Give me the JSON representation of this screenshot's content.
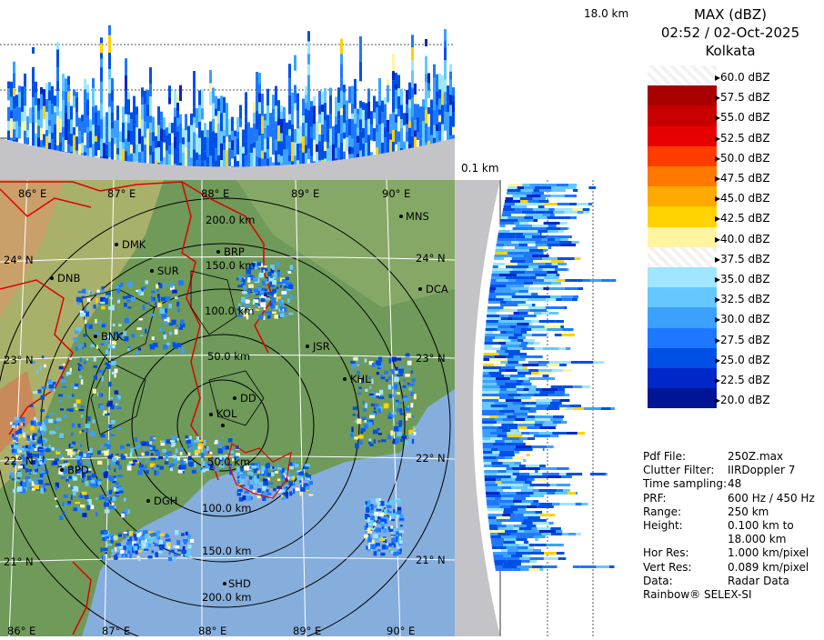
{
  "header": {
    "product": "MAX (dBZ)",
    "timestamp": "02:52 / 02-Oct-2025",
    "station": "Kolkata"
  },
  "profile_labels": {
    "top_height": "18.0 km",
    "bottom_height": "0.1 km"
  },
  "legend": [
    {
      "label": "60.0 dBZ",
      "color": "#ffffff"
    },
    {
      "label": "57.5 dBZ",
      "color": "#a80000"
    },
    {
      "label": "55.0 dBZ",
      "color": "#c80000"
    },
    {
      "label": "52.5 dBZ",
      "color": "#e60000"
    },
    {
      "label": "50.0 dBZ",
      "color": "#ff3c00"
    },
    {
      "label": "47.5 dBZ",
      "color": "#ff7800"
    },
    {
      "label": "45.0 dBZ",
      "color": "#ffaa00"
    },
    {
      "label": "42.5 dBZ",
      "color": "#ffd200"
    },
    {
      "label": "40.0 dBZ",
      "color": "#fff5a0"
    },
    {
      "label": "37.5 dBZ",
      "color": "#ffffff"
    },
    {
      "label": "35.0 dBZ",
      "color": "#a0e6ff"
    },
    {
      "label": "32.5 dBZ",
      "color": "#64c8ff"
    },
    {
      "label": "30.0 dBZ",
      "color": "#3ca0ff"
    },
    {
      "label": "27.5 dBZ",
      "color": "#1e78ff"
    },
    {
      "label": "25.0 dBZ",
      "color": "#0050e6"
    },
    {
      "label": "22.5 dBZ",
      "color": "#0028c8"
    },
    {
      "label": "20.0 dBZ",
      "color": "#001496"
    }
  ],
  "info": [
    {
      "key": "Pdf File:",
      "value": "250Z.max"
    },
    {
      "key": "Clutter Filter:",
      "value": "IIRDoppler 7"
    },
    {
      "key": "Time sampling:",
      "value": "48"
    },
    {
      "key": "PRF:",
      "value": "600 Hz / 450 Hz"
    },
    {
      "key": "Range:",
      "value": "250 km"
    },
    {
      "key": "Height:",
      "value": "0.100 km to"
    },
    {
      "key": "",
      "value": "18.000 km"
    },
    {
      "key": "Hor Res:",
      "value": "1.000 km/pixel"
    },
    {
      "key": "Vert Res:",
      "value": "0.089 km/pixel"
    },
    {
      "key": "Data:",
      "value": "Radar Data"
    }
  ],
  "footer": "Rainbow® SELEX-SI",
  "map": {
    "lon_labels": [
      "86° E",
      "87° E",
      "88° E",
      "89° E",
      "90° E"
    ],
    "lat_labels": [
      "24° N",
      "23° N",
      "22° N",
      "21° N"
    ],
    "range_labels": [
      "50.0 km",
      "100.0 km",
      "150.0 km",
      "200.0 km"
    ],
    "cities": [
      "MNS",
      "DMK",
      "BRP",
      "DNB",
      "SUR",
      "DCA",
      "BNK",
      "JSR",
      "KHL",
      "BPD",
      "DGH",
      "SHD",
      "KOL",
      "DD"
    ]
  }
}
